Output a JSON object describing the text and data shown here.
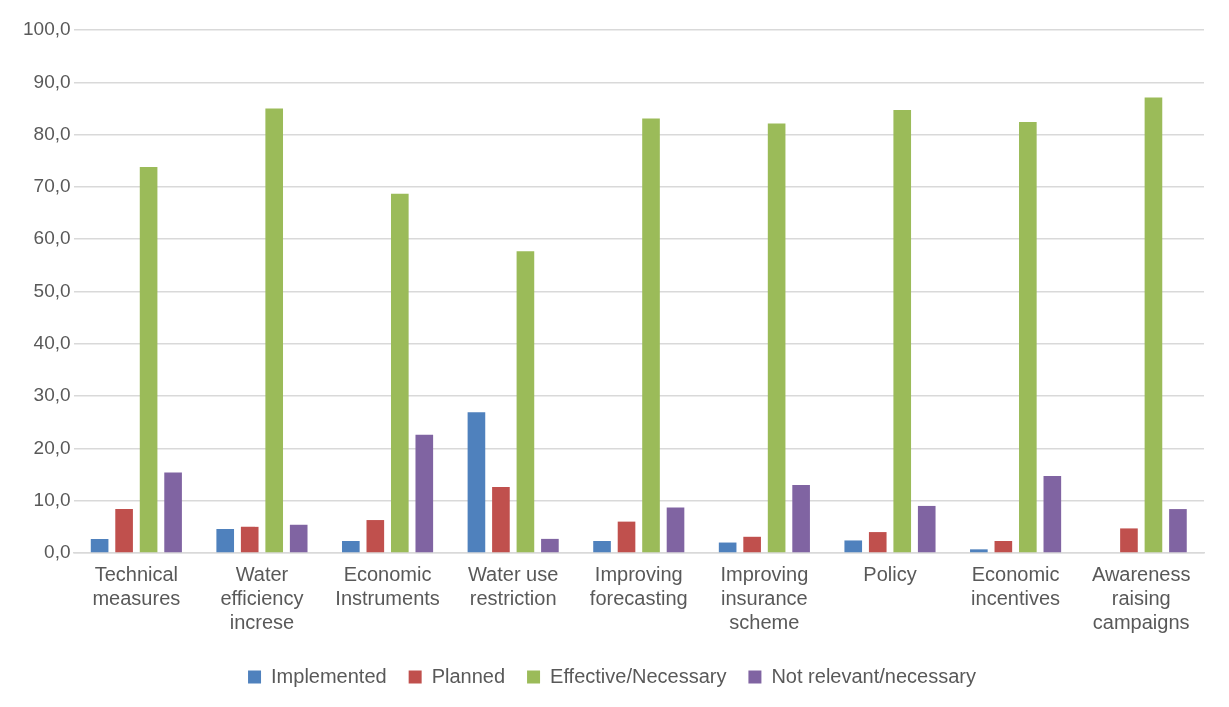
{
  "chart_data": {
    "type": "bar",
    "categories": [
      "Technical measures",
      "Water efficiency increse",
      "Economic Instruments",
      "Water use restriction",
      "Improving forecasting",
      "Improving insurance scheme",
      "Policy",
      "Economic incentives",
      "Awareness raising campaigns"
    ],
    "series": [
      {
        "name": "Implemented",
        "color": "#4f81bd",
        "values": [
          2.7,
          4.6,
          2.3,
          26.9,
          2.3,
          2.0,
          2.4,
          0.7,
          null
        ]
      },
      {
        "name": "Planned",
        "color": "#c0504d",
        "values": [
          8.4,
          5.0,
          6.3,
          12.6,
          6.0,
          3.1,
          4.0,
          2.3,
          4.7
        ]
      },
      {
        "name": "Effective/Necessary",
        "color": "#9bbb59",
        "values": [
          73.8,
          85.0,
          68.7,
          57.7,
          83.1,
          82.1,
          84.7,
          82.4,
          87.1
        ]
      },
      {
        "name": "Not relevant/necessary",
        "color": "#8064a2",
        "values": [
          15.4,
          5.4,
          22.6,
          2.7,
          8.7,
          13.0,
          9.0,
          14.7,
          8.4
        ]
      }
    ],
    "ylim": [
      0,
      100
    ],
    "yticks": [
      {
        "value": 0,
        "label": "0,0"
      },
      {
        "value": 10,
        "label": "10,0"
      },
      {
        "value": 20,
        "label": "20,0"
      },
      {
        "value": 30,
        "label": "30,0"
      },
      {
        "value": 40,
        "label": "40,0"
      },
      {
        "value": 50,
        "label": "50,0"
      },
      {
        "value": 60,
        "label": "60,0"
      },
      {
        "value": 70,
        "label": "70,0"
      },
      {
        "value": 80,
        "label": "80,0"
      },
      {
        "value": 90,
        "label": "90,0"
      },
      {
        "value": 100,
        "label": "100,0"
      }
    ],
    "grid": "y",
    "legend": "bottom"
  }
}
